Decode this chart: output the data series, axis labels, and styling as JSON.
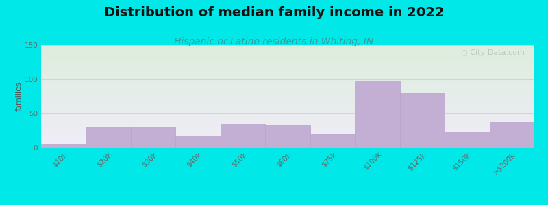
{
  "title": "Distribution of median family income in 2022",
  "subtitle": "Hispanic or Latino residents in Whiting, IN",
  "categories": [
    "$10k",
    "$20k",
    "$30k",
    "$40k",
    "$50k",
    "$60k",
    "$75k",
    "$100k",
    "$125k",
    "$150k",
    ">$200k"
  ],
  "values": [
    5,
    30,
    30,
    17,
    35,
    33,
    20,
    97,
    80,
    23,
    37
  ],
  "bar_color": "#c4afd4",
  "bar_edge_color": "#b8a0cc",
  "ylabel": "families",
  "ylim": [
    0,
    150
  ],
  "yticks": [
    0,
    50,
    100,
    150
  ],
  "background_outer": "#00e8e8",
  "background_plot_top_color": "#ddeedd",
  "background_plot_bottom_color": "#f0ecf8",
  "title_fontsize": 14,
  "subtitle_fontsize": 10,
  "subtitle_color": "#3a9a9a",
  "watermark_text": "City-Data.com",
  "watermark_color": "#b8c4c4",
  "grid_color": "#d8cce8",
  "tick_label_color": "#666666",
  "tick_label_fontsize": 7.5,
  "ylabel_fontsize": 8,
  "ylabel_color": "#555555"
}
